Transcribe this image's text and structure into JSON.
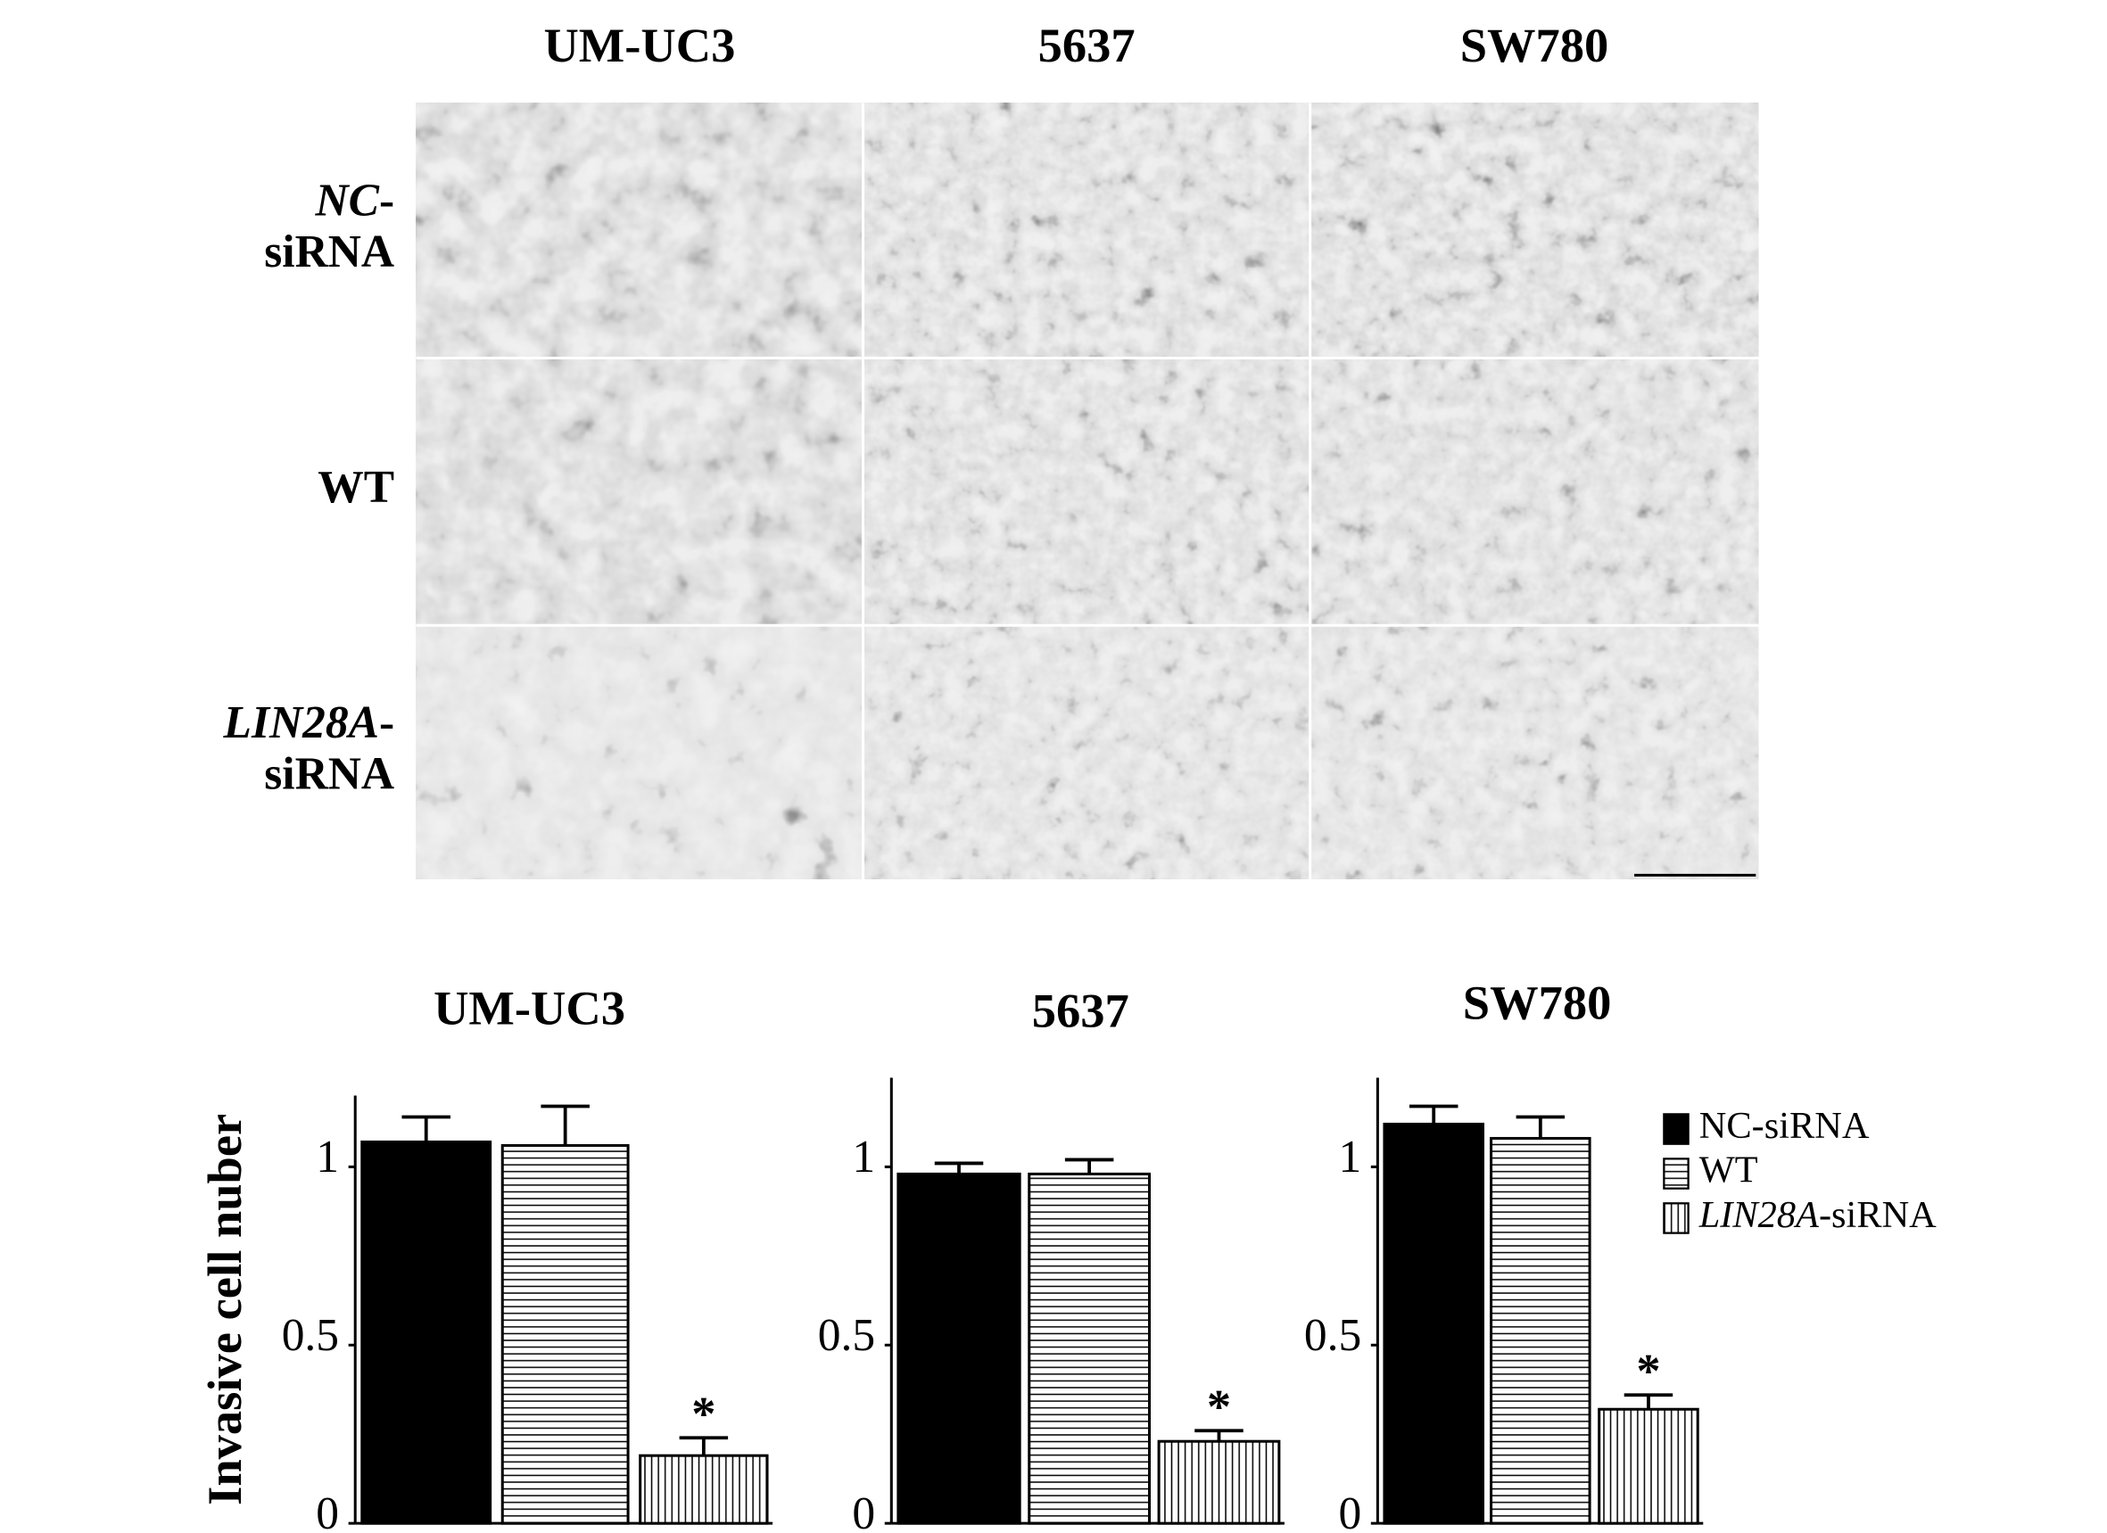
{
  "micrographs": {
    "columns": [
      "UM-UC3",
      "5637",
      "SW780"
    ],
    "rows": [
      "NC-siRNA",
      "WT",
      "LIN28A-siRNA"
    ]
  },
  "chart_data": [
    {
      "type": "bar",
      "title": "UM-UC3",
      "y_label": "Invasive cell nuber",
      "categories": [
        null
      ],
      "series": [
        {
          "name": "NC-siRNA",
          "color": "#000000",
          "pattern": "solid",
          "values": [
            1.07
          ],
          "errors": [
            0.07
          ],
          "significance": [
            null
          ]
        },
        {
          "name": "WT",
          "color": "#000000",
          "pattern": "horizontal",
          "values": [
            1.06
          ],
          "errors": [
            0.11
          ],
          "significance": [
            null
          ]
        },
        {
          "name": "LIN28A-siRNA",
          "color": "#000000",
          "pattern": "vertical",
          "values": [
            0.19
          ],
          "errors": [
            0.05
          ],
          "significance": [
            "*"
          ]
        }
      ],
      "ylim": [
        0,
        1.2
      ],
      "yticks": [
        0,
        0.5,
        1
      ],
      "legend": false
    },
    {
      "type": "bar",
      "title": "5637",
      "categories": [
        null
      ],
      "series": [
        {
          "name": "NC-siRNA",
          "color": "#000000",
          "pattern": "solid",
          "values": [
            0.98
          ],
          "errors": [
            0.03
          ],
          "significance": [
            null
          ]
        },
        {
          "name": "WT",
          "color": "#000000",
          "pattern": "horizontal",
          "values": [
            0.98
          ],
          "errors": [
            0.04
          ],
          "significance": [
            null
          ]
        },
        {
          "name": "LIN28A-siRNA",
          "color": "#000000",
          "pattern": "vertical",
          "values": [
            0.23
          ],
          "errors": [
            0.03
          ],
          "significance": [
            "*"
          ]
        }
      ],
      "ylim": [
        0,
        1.25
      ],
      "yticks": [
        0,
        0.5,
        1
      ],
      "legend": false
    },
    {
      "type": "bar",
      "title": "SW780",
      "categories": [
        null
      ],
      "series": [
        {
          "name": "NC-siRNA",
          "color": "#000000",
          "pattern": "solid",
          "values": [
            1.12
          ],
          "errors": [
            0.05
          ],
          "significance": [
            null
          ]
        },
        {
          "name": "WT",
          "color": "#000000",
          "pattern": "horizontal",
          "values": [
            1.08
          ],
          "errors": [
            0.06
          ],
          "significance": [
            null
          ]
        },
        {
          "name": "LIN28A-siRNA",
          "color": "#000000",
          "pattern": "vertical",
          "values": [
            0.32
          ],
          "errors": [
            0.04
          ],
          "significance": [
            "*"
          ]
        }
      ],
      "ylim": [
        0,
        1.25
      ],
      "yticks": [
        0,
        0.5,
        1
      ],
      "legend": "upper right"
    }
  ]
}
